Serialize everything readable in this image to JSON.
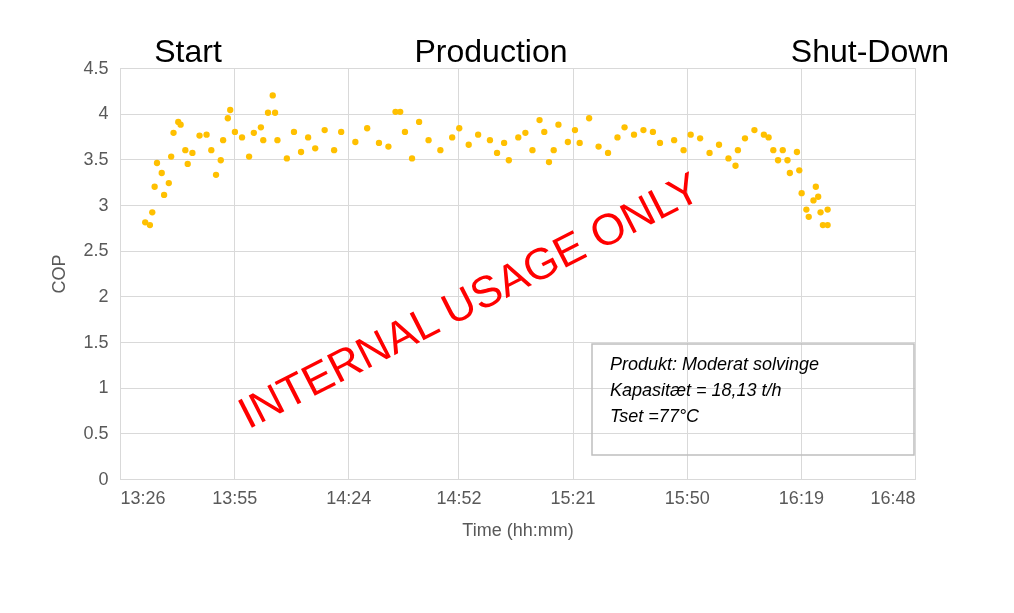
{
  "chart_data": {
    "type": "scatter",
    "xlabel": "Time (hh:mm)",
    "ylabel": "COP",
    "x": [
      13.54,
      13.56,
      13.57,
      13.58,
      13.59,
      13.61,
      13.62,
      13.64,
      13.65,
      13.66,
      13.68,
      13.69,
      13.71,
      13.72,
      13.74,
      13.77,
      13.8,
      13.82,
      13.84,
      13.86,
      13.87,
      13.89,
      13.9,
      13.92,
      13.95,
      13.98,
      14.0,
      14.03,
      14.04,
      14.06,
      14.08,
      14.09,
      14.1,
      14.14,
      14.17,
      14.2,
      14.23,
      14.26,
      14.3,
      14.34,
      14.37,
      14.43,
      14.48,
      14.53,
      14.57,
      14.6,
      14.62,
      14.64,
      14.67,
      14.7,
      14.74,
      14.79,
      14.84,
      14.87,
      14.91,
      14.95,
      15.0,
      15.03,
      15.06,
      15.08,
      15.12,
      15.15,
      15.18,
      15.21,
      15.23,
      15.25,
      15.27,
      15.29,
      15.33,
      15.36,
      15.38,
      15.42,
      15.46,
      15.5,
      15.54,
      15.57,
      15.61,
      15.65,
      15.69,
      15.72,
      15.78,
      15.82,
      15.85,
      15.89,
      15.93,
      15.97,
      16.01,
      16.04,
      16.05,
      16.08,
      16.12,
      16.16,
      16.18,
      16.2,
      16.22,
      16.24,
      16.26,
      16.27,
      16.3,
      16.31,
      16.32,
      16.34,
      16.35,
      16.37,
      16.38,
      16.39,
      16.4,
      16.41,
      16.43,
      16.43
    ],
    "series": [
      {
        "color": "#ffc000",
        "values": [
          2.81,
          2.78,
          2.92,
          3.2,
          3.46,
          3.35,
          3.11,
          3.24,
          3.53,
          3.79,
          3.91,
          3.88,
          3.6,
          3.45,
          3.57,
          3.76,
          3.77,
          3.6,
          3.33,
          3.49,
          3.71,
          3.95,
          4.04,
          3.8,
          3.74,
          3.53,
          3.79,
          3.85,
          3.71,
          4.01,
          4.2,
          4.01,
          3.71,
          3.51,
          3.8,
          3.58,
          3.74,
          3.62,
          3.82,
          3.6,
          3.8,
          3.69,
          3.84,
          3.68,
          3.64,
          4.02,
          4.02,
          3.8,
          3.51,
          3.91,
          3.71,
          3.6,
          3.74,
          3.84,
          3.66,
          3.77,
          3.71,
          3.57,
          3.68,
          3.49,
          3.74,
          3.79,
          3.6,
          3.93,
          3.8,
          3.47,
          3.6,
          3.88,
          3.69,
          3.82,
          3.68,
          3.95,
          3.64,
          3.57,
          3.74,
          3.85,
          3.77,
          3.82,
          3.8,
          3.68,
          3.71,
          3.6,
          3.77,
          3.73,
          3.57,
          3.66,
          3.51,
          3.43,
          3.6,
          3.73,
          3.82,
          3.77,
          3.74,
          3.6,
          3.49,
          3.6,
          3.49,
          3.35,
          3.58,
          3.38,
          3.13,
          2.95,
          2.87,
          3.05,
          3.2,
          3.09,
          2.92,
          2.78,
          2.95,
          2.78
        ]
      }
    ],
    "xlim": [
      13.4333,
      16.8
    ],
    "xticks": [
      {
        "value": 13.4333,
        "label": "13:26"
      },
      {
        "value": 13.9167,
        "label": "13:55"
      },
      {
        "value": 14.4,
        "label": "14:24"
      },
      {
        "value": 14.8667,
        "label": "14:52"
      },
      {
        "value": 15.35,
        "label": "15:21"
      },
      {
        "value": 15.8333,
        "label": "15:50"
      },
      {
        "value": 16.3167,
        "label": "16:19"
      },
      {
        "value": 16.8,
        "label": "16:48"
      }
    ],
    "ylim": [
      0,
      4.5
    ],
    "yticks": [
      0,
      0.5,
      1,
      1.5,
      2,
      2.5,
      3,
      3.5,
      4,
      4.5
    ],
    "grid": true,
    "marker": "circle",
    "annotations": [
      "Produkt: Moderat solvinge\nKapasitæt = 18,13 t/h\nTset =77°C",
      "INTERNAL USAGE ONLY",
      "Start",
      "Production",
      "Shut-Down"
    ]
  }
}
